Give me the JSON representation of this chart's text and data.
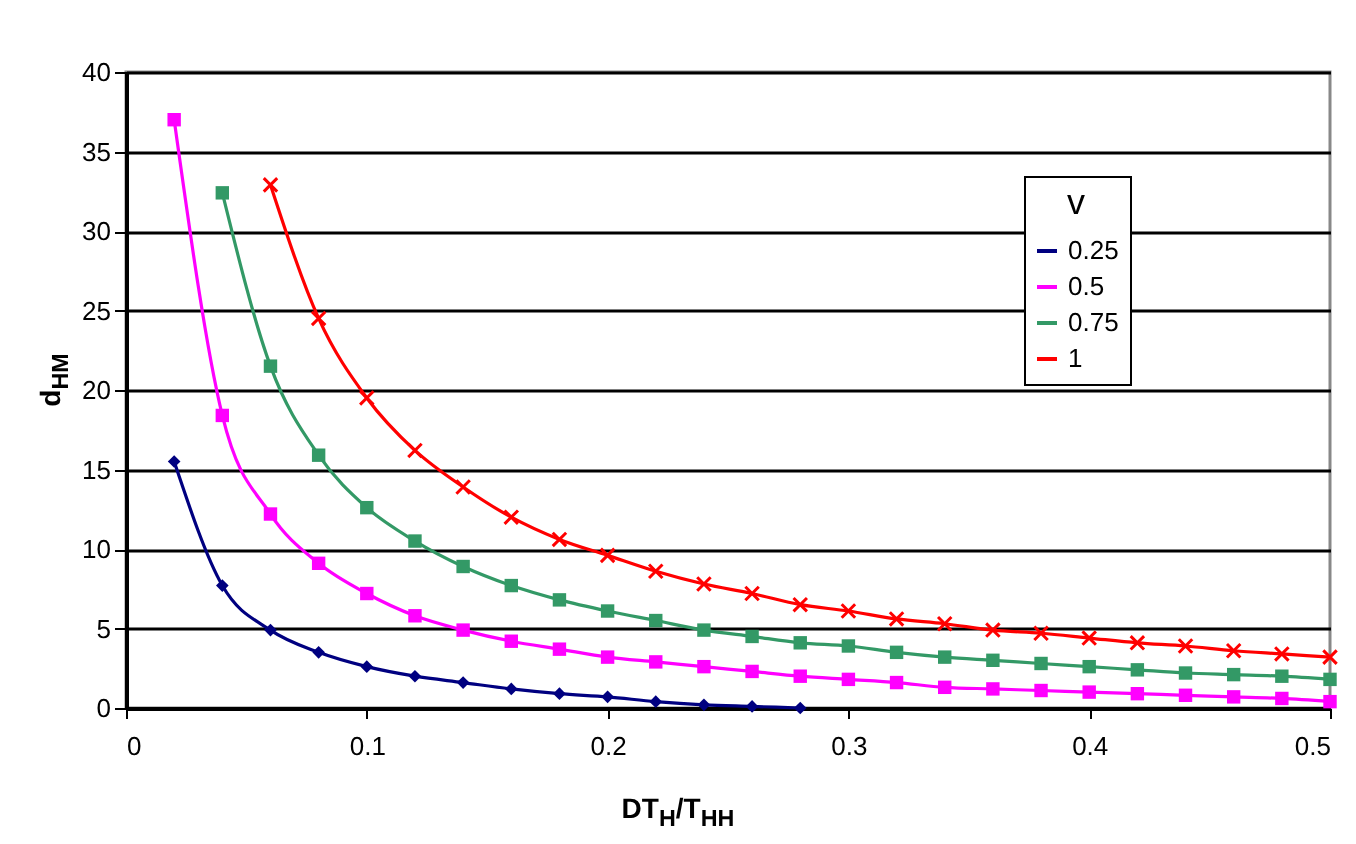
{
  "chart_data": {
    "type": "line",
    "xlabel": "DT$_{H}$/T$_{HH}$",
    "ylabel": "d$_{HM}$",
    "legend_title": "v",
    "legend": "right",
    "grid": "y",
    "line_style": "solid",
    "xlim": [
      0,
      0.5
    ],
    "xticks": [
      0,
      0.1,
      0.2,
      0.3,
      0.4,
      0.5
    ],
    "ylim": [
      0,
      40
    ],
    "yticks": [
      0,
      5,
      10,
      15,
      20,
      25,
      30,
      35,
      40
    ],
    "series": [
      {
        "name": "0.25",
        "color": "#000080",
        "marker": "diamond",
        "x": [
          0.02,
          0.04,
          0.06,
          0.08,
          0.1,
          0.12,
          0.14,
          0.16,
          0.18,
          0.2,
          0.22,
          0.24,
          0.26,
          0.28
        ],
        "values": [
          15.5,
          7.7,
          4.9,
          3.5,
          2.6,
          2.0,
          1.6,
          1.2,
          0.9,
          0.7,
          0.4,
          0.2,
          0.1,
          0.0
        ]
      },
      {
        "name": "0.5",
        "color": "#ff00ff",
        "marker": "square",
        "x": [
          0.02,
          0.04,
          0.06,
          0.08,
          0.1,
          0.12,
          0.14,
          0.16,
          0.18,
          0.2,
          0.22,
          0.24,
          0.26,
          0.28,
          0.3,
          0.32,
          0.34,
          0.36,
          0.38,
          0.4,
          0.42,
          0.44,
          0.46,
          0.48,
          0.5
        ],
        "values": [
          37,
          18.4,
          12.2,
          9.1,
          7.2,
          5.8,
          4.9,
          4.2,
          3.7,
          3.2,
          2.9,
          2.6,
          2.3,
          2.0,
          1.8,
          1.6,
          1.3,
          1.2,
          1.1,
          1.0,
          0.9,
          0.8,
          0.7,
          0.6,
          0.4
        ]
      },
      {
        "name": "0.75",
        "color": "#339966",
        "marker": "square",
        "x": [
          0.04,
          0.06,
          0.08,
          0.1,
          0.12,
          0.14,
          0.16,
          0.18,
          0.2,
          0.22,
          0.24,
          0.26,
          0.28,
          0.3,
          0.32,
          0.34,
          0.36,
          0.38,
          0.4,
          0.42,
          0.44,
          0.46,
          0.48,
          0.5
        ],
        "values": [
          32.4,
          21.5,
          15.9,
          12.6,
          10.5,
          8.9,
          7.7,
          6.8,
          6.1,
          5.5,
          4.9,
          4.5,
          4.1,
          3.9,
          3.5,
          3.2,
          3.0,
          2.8,
          2.6,
          2.4,
          2.2,
          2.1,
          2.0,
          1.8
        ]
      },
      {
        "name": "1",
        "color": "#ff0000",
        "marker": "cross",
        "x": [
          0.06,
          0.08,
          0.1,
          0.12,
          0.14,
          0.16,
          0.18,
          0.2,
          0.22,
          0.24,
          0.26,
          0.28,
          0.3,
          0.32,
          0.34,
          0.36,
          0.38,
          0.4,
          0.42,
          0.44,
          0.46,
          0.48,
          0.5
        ],
        "values": [
          32.9,
          24.5,
          19.5,
          16.2,
          13.9,
          12.0,
          10.6,
          9.6,
          8.6,
          7.8,
          7.2,
          6.5,
          6.1,
          5.6,
          5.3,
          4.9,
          4.7,
          4.4,
          4.1,
          3.9,
          3.6,
          3.4,
          3.2
        ]
      }
    ]
  }
}
